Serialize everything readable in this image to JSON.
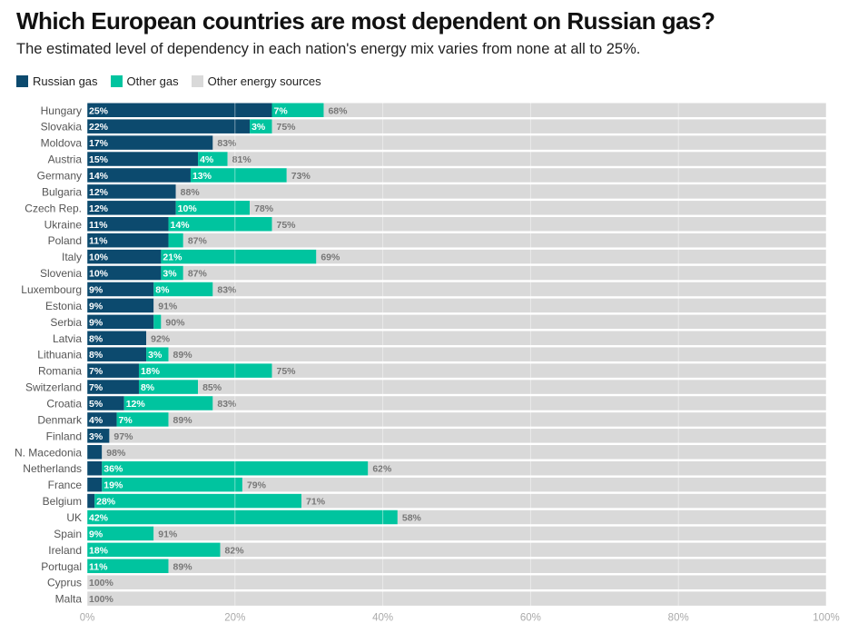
{
  "chart_data": {
    "type": "bar",
    "orientation": "horizontal",
    "stacked": true,
    "title": "Which European countries are most dependent on Russian gas?",
    "subtitle": "The estimated level of dependency in each nation's energy mix varies from none at all to 25%.",
    "xlim": [
      0,
      100
    ],
    "x_ticks": [
      "0%",
      "20%",
      "40%",
      "60%",
      "80%",
      "100%"
    ],
    "x_tick_values": [
      0,
      20,
      40,
      60,
      80,
      100
    ],
    "grid": true,
    "legend_position": "top-left",
    "categories": [
      "Hungary",
      "Slovakia",
      "Moldova",
      "Austria",
      "Germany",
      "Bulgaria",
      "Czech Rep.",
      "Ukraine",
      "Poland",
      "Italy",
      "Slovenia",
      "Luxembourg",
      "Estonia",
      "Serbia",
      "Latvia",
      "Lithuania",
      "Romania",
      "Switzerland",
      "Croatia",
      "Denmark",
      "Finland",
      "N. Macedonia",
      "Netherlands",
      "France",
      "Belgium",
      "UK",
      "Spain",
      "Ireland",
      "Portugal",
      "Cyprus",
      "Malta"
    ],
    "series": [
      {
        "name": "Russian gas",
        "color": "#0c4a6e",
        "values": [
          25,
          22,
          17,
          15,
          14,
          12,
          12,
          11,
          11,
          10,
          10,
          9,
          9,
          9,
          8,
          8,
          7,
          7,
          5,
          4,
          3,
          2,
          2,
          2,
          1,
          0,
          0,
          0,
          0,
          0,
          0
        ],
        "labels": [
          "25%",
          "22%",
          "17%",
          "15%",
          "14%",
          "12%",
          "12%",
          "11%",
          "11%",
          "10%",
          "10%",
          "9%",
          "9%",
          "9%",
          "8%",
          "8%",
          "7%",
          "7%",
          "5%",
          "4%",
          "3%",
          "",
          "",
          "",
          "",
          "",
          "",
          "",
          "",
          "",
          ""
        ]
      },
      {
        "name": "Other gas",
        "color": "#00c49f",
        "values": [
          7,
          3,
          0,
          4,
          13,
          0,
          10,
          14,
          2,
          21,
          3,
          8,
          0,
          1,
          0,
          3,
          18,
          8,
          12,
          7,
          0,
          0,
          36,
          19,
          28,
          42,
          9,
          18,
          11,
          0,
          0
        ],
        "labels": [
          "7%",
          "3%",
          "",
          "4%",
          "13%",
          "",
          "10%",
          "14%",
          "",
          "21%",
          "3%",
          "8%",
          "",
          "",
          "",
          "3%",
          "18%",
          "8%",
          "12%",
          "7%",
          "",
          "",
          "36%",
          "19%",
          "28%",
          "42%",
          "9%",
          "18%",
          "11%",
          "",
          ""
        ]
      },
      {
        "name": "Other energy sources",
        "color": "#d9d9d9",
        "values": [
          68,
          75,
          83,
          81,
          73,
          88,
          78,
          75,
          87,
          69,
          87,
          83,
          91,
          90,
          92,
          89,
          75,
          85,
          83,
          89,
          97,
          98,
          62,
          79,
          71,
          58,
          91,
          82,
          89,
          100,
          100
        ],
        "labels": [
          "68%",
          "75%",
          "83%",
          "81%",
          "73%",
          "88%",
          "78%",
          "75%",
          "87%",
          "69%",
          "87%",
          "83%",
          "91%",
          "90%",
          "92%",
          "89%",
          "75%",
          "85%",
          "83%",
          "89%",
          "97%",
          "98%",
          "62%",
          "79%",
          "71%",
          "58%",
          "91%",
          "82%",
          "89%",
          "100%",
          "100%"
        ]
      }
    ]
  }
}
